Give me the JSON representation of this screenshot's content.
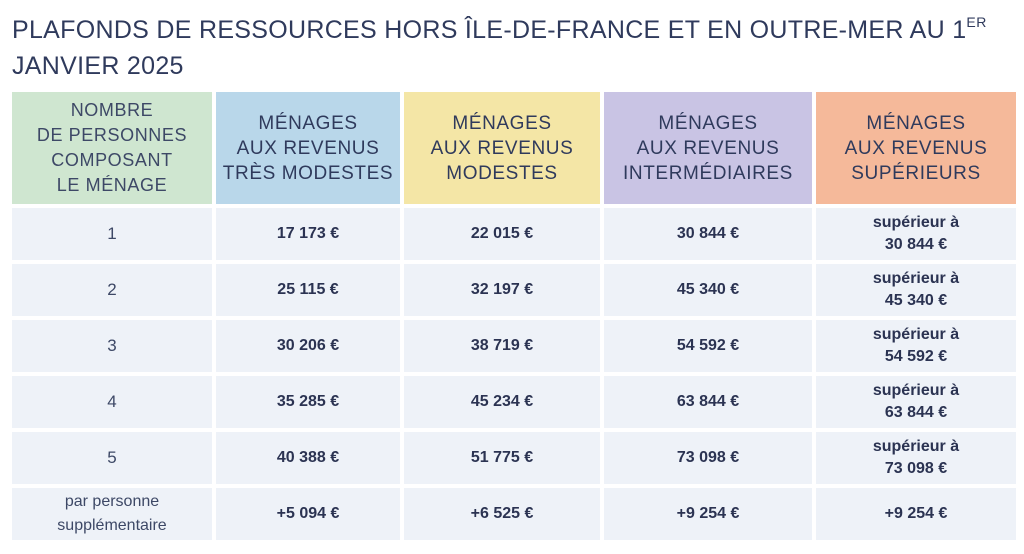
{
  "title": {
    "line1": "PLAFONDS DE RESSOURCES HORS ÎLE-DE-FRANCE ET EN OUTRE-MER AU 1",
    "sup": "ER",
    "line2": "JANVIER 2025"
  },
  "headers": [
    {
      "lines": [
        "NOMBRE",
        "DE PERSONNES",
        "COMPOSANT",
        "LE MÉNAGE"
      ],
      "color": "#cfe6d0"
    },
    {
      "lines": [
        "MÉNAGES",
        "AUX REVENUS",
        "TRÈS MODESTES"
      ],
      "color": "#b9d7ea"
    },
    {
      "lines": [
        "MÉNAGES",
        "AUX REVENUS",
        "MODESTES"
      ],
      "color": "#f4e6a6"
    },
    {
      "lines": [
        "MÉNAGES",
        "AUX REVENUS",
        "INTERMÉDIAIRES"
      ],
      "color": "#c9c4e4"
    },
    {
      "lines": [
        "MÉNAGES",
        "AUX REVENUS",
        "SUPÉRIEURS"
      ],
      "color": "#f5b99a"
    }
  ],
  "rows": [
    {
      "label": [
        "1"
      ],
      "very_modest": "17 173 €",
      "modest": "22 015 €",
      "intermediate": "30 844 €",
      "superior": [
        "supérieur à",
        "30 844 €"
      ]
    },
    {
      "label": [
        "2"
      ],
      "very_modest": "25 115 €",
      "modest": "32 197 €",
      "intermediate": "45 340 €",
      "superior": [
        "supérieur à",
        "45 340 €"
      ]
    },
    {
      "label": [
        "3"
      ],
      "very_modest": "30 206 €",
      "modest": "38 719 €",
      "intermediate": "54 592 €",
      "superior": [
        "supérieur à",
        "54 592 €"
      ]
    },
    {
      "label": [
        "4"
      ],
      "very_modest": "35 285 €",
      "modest": "45 234 €",
      "intermediate": "63 844 €",
      "superior": [
        "supérieur à",
        "63 844 €"
      ]
    },
    {
      "label": [
        "5"
      ],
      "very_modest": "40 388 €",
      "modest": "51 775 €",
      "intermediate": "73 098 €",
      "superior": [
        "supérieur à",
        "73 098 €"
      ]
    },
    {
      "label": [
        "par personne",
        "supplémentaire"
      ],
      "very_modest": "+5 094 €",
      "modest": "+6 525 €",
      "intermediate": "+9 254 €",
      "superior": [
        "+9 254 €"
      ]
    }
  ]
}
